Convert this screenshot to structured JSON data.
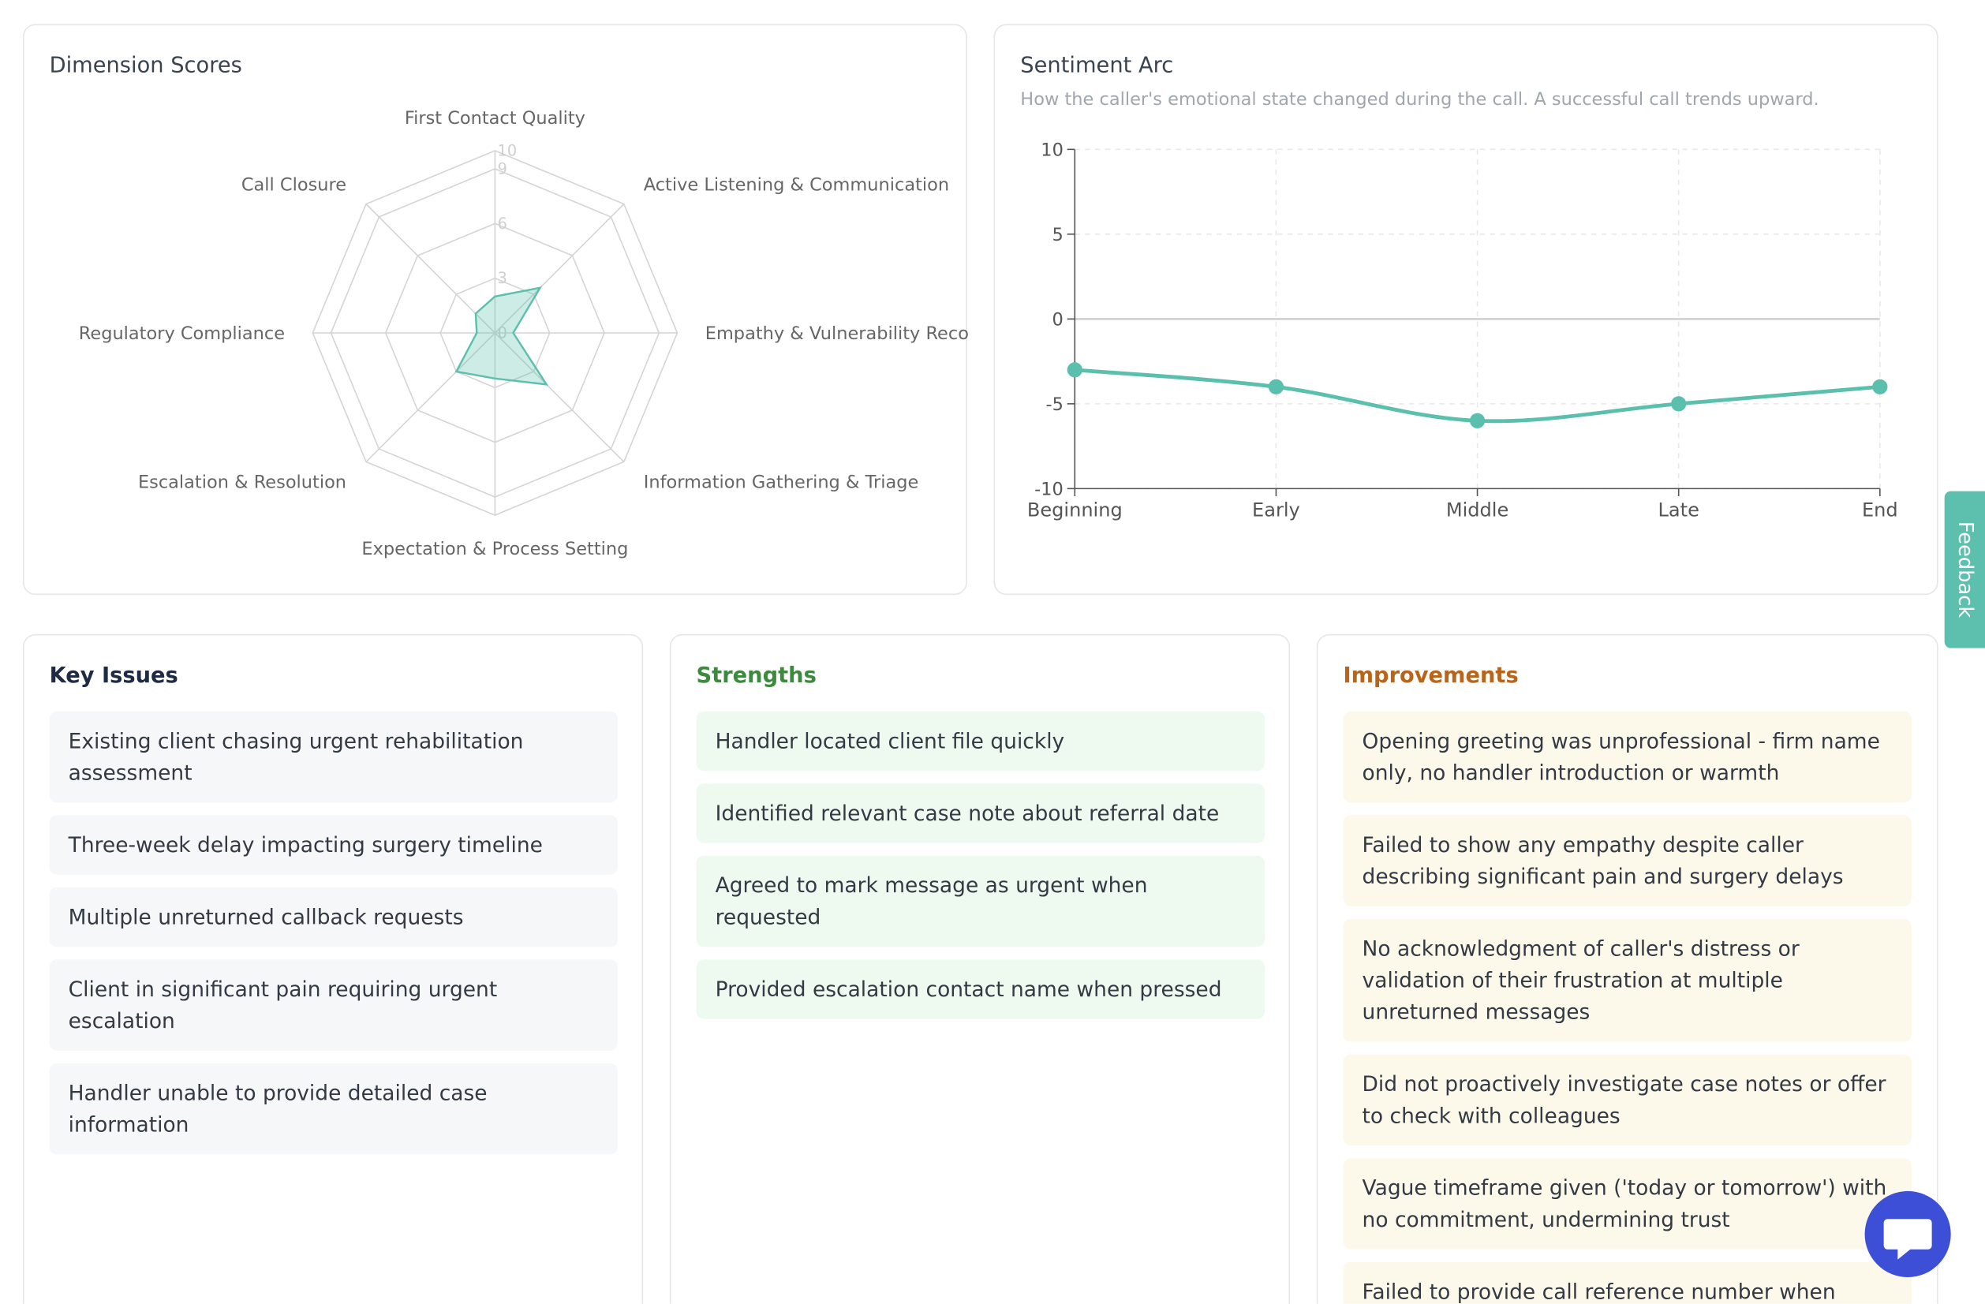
{
  "chart_data": [
    {
      "type": "radar",
      "title": "Dimension Scores",
      "categories": [
        "First Contact Quality",
        "Active Listening & Communication",
        "Empathy & Vulnerability Recog",
        "Information Gathering & Triage",
        "Expectation & Process Setting",
        "Escalation & Resolution",
        "Regulatory Compliance",
        "Call Closure"
      ],
      "values": [
        2,
        3.5,
        1,
        4,
        2.5,
        3,
        1,
        1.5
      ],
      "color": "#5bbfad",
      "rlim": [
        0,
        10
      ],
      "rticks": [
        0,
        3,
        6,
        9,
        10
      ]
    },
    {
      "type": "line",
      "title": "Sentiment Arc",
      "subtitle": "How the caller's emotional state changed during the call. A successful call trends upward.",
      "categories": [
        "Beginning",
        "Early",
        "Middle",
        "Late",
        "End"
      ],
      "values": [
        -3,
        -4,
        -6,
        -5,
        -4
      ],
      "color": "#5bbfad",
      "ylim": [
        -10,
        10
      ],
      "yticks": [
        -10,
        -5,
        0,
        5,
        10
      ],
      "grid": true
    }
  ],
  "key_issues": {
    "title": "Key Issues",
    "items": [
      "Existing client chasing urgent rehabilitation assessment",
      "Three-week delay impacting surgery timeline",
      "Multiple unreturned callback requests",
      "Client in significant pain requiring urgent escalation",
      "Handler unable to provide detailed case information"
    ]
  },
  "strengths": {
    "title": "Strengths",
    "items": [
      "Handler located client file quickly",
      "Identified relevant case note about referral date",
      "Agreed to mark message as urgent when requested",
      "Provided escalation contact name when pressed"
    ]
  },
  "improvements": {
    "title": "Improvements",
    "items": [
      "Opening greeting was unprofessional - firm name only, no handler introduction or warmth",
      "Failed to show any empathy despite caller describing significant pain and surgery delays",
      "No acknowledgment of caller's distress or validation of their frustration at multiple unreturned messages",
      "Did not proactively investigate case notes or offer to check with colleagues",
      "Vague timeframe given ('today or tomorrow') with no commitment, undermining trust",
      "Failed to provide call reference number when"
    ]
  },
  "feedback_tab": "Feedback"
}
